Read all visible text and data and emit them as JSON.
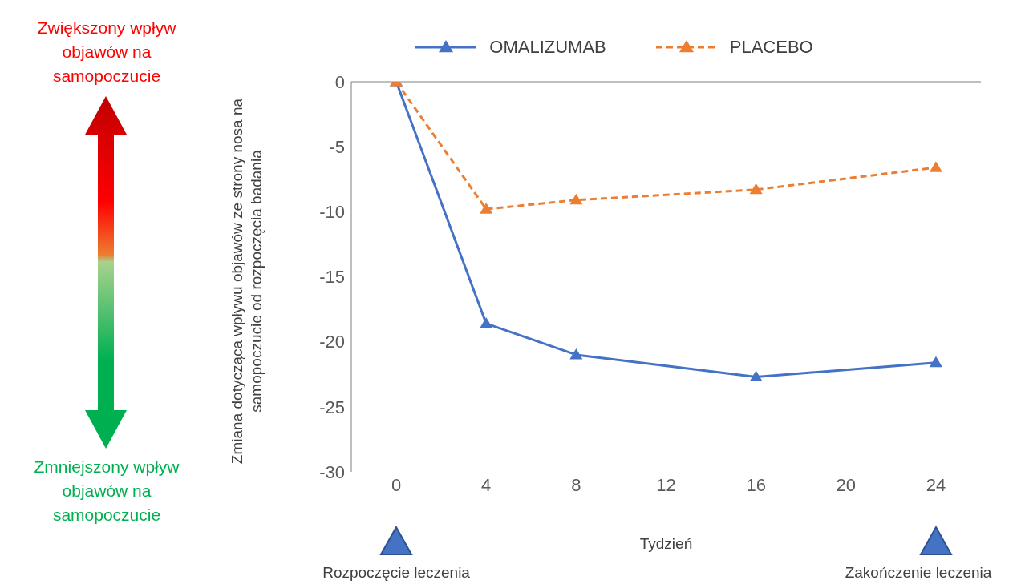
{
  "chart_data": {
    "type": "line",
    "xlabel": "Tydzień",
    "ylabel": "Zmiana dotycząca wpływu objawów ze strony nosa na samopoczucie od rozpoczęcia badania",
    "x": [
      0,
      4,
      8,
      16,
      24
    ],
    "series": [
      {
        "name": "OMALIZUMAB",
        "color": "#4472c4",
        "line_style": "solid",
        "values": [
          0,
          -18.6,
          -21,
          -22.7,
          -21.6
        ]
      },
      {
        "name": "PLACEBO",
        "color": "#ed7d31",
        "line_style": "dashed",
        "values": [
          0,
          -9.8,
          -9.1,
          -8.3,
          -6.6
        ]
      }
    ],
    "xlim": [
      -2,
      26
    ],
    "xticks": [
      0,
      4,
      8,
      12,
      16,
      20,
      24
    ],
    "ylim": [
      -30,
      0
    ],
    "yticks": [
      -30,
      -25,
      -20,
      -15,
      -10,
      -5,
      0
    ],
    "marker": "triangle",
    "grid": false,
    "legend": "top",
    "annotations": [
      "Zwiększony wpływ objawów na samopoczucie",
      "Zmniejszony wpływ objawów na samopoczucie",
      "Rozpoczęcie leczenia",
      "Zakończenie leczenia"
    ]
  }
}
